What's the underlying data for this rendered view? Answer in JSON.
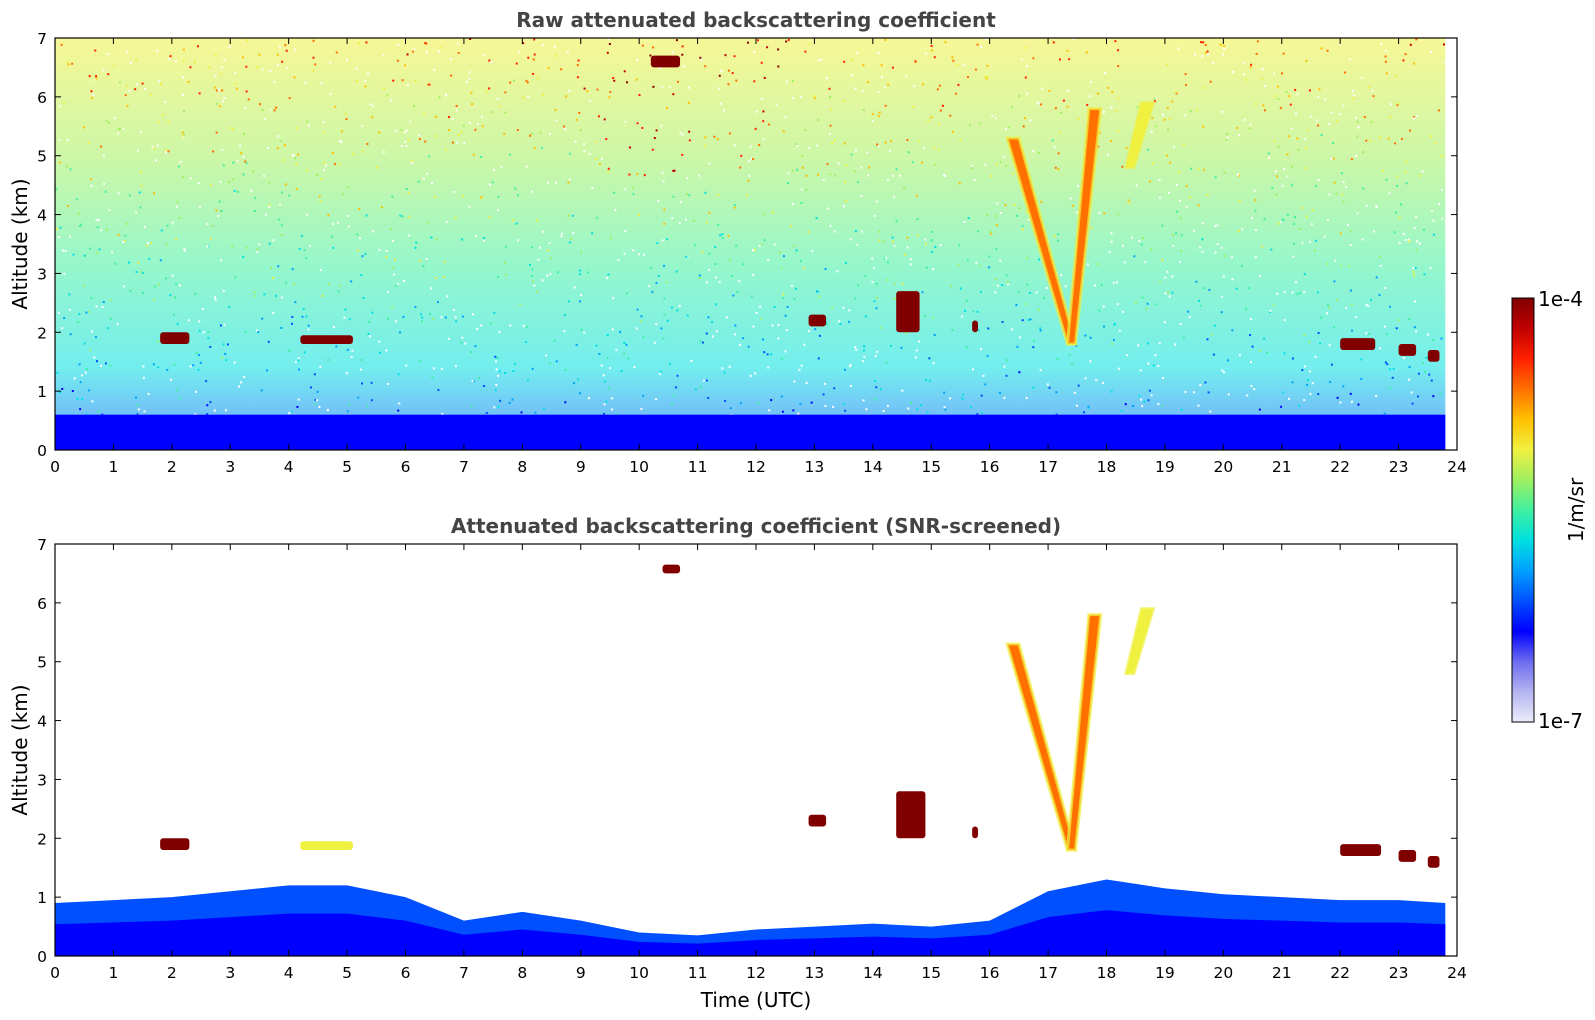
{
  "chart_data": [
    {
      "type": "heatmap",
      "title": "Raw attenuated backscattering coefficient",
      "xlabel": "",
      "ylabel": "Altitude (km)",
      "xlim": [
        0,
        24
      ],
      "ylim": [
        0,
        7
      ],
      "xticks": [
        "0",
        "1",
        "2",
        "3",
        "4",
        "5",
        "6",
        "7",
        "8",
        "9",
        "10",
        "11",
        "12",
        "13",
        "14",
        "15",
        "16",
        "17",
        "18",
        "19",
        "20",
        "21",
        "22",
        "23",
        "24"
      ],
      "yticks": [
        "0",
        "1",
        "2",
        "3",
        "4",
        "5",
        "6",
        "7"
      ],
      "data_end_time": 23.8,
      "features": [
        {
          "kind": "boundary-layer",
          "x": [
            0,
            23.8
          ],
          "top_km": 0.6,
          "level": "low"
        },
        {
          "kind": "noise-background",
          "x": [
            0,
            23.8
          ],
          "y": [
            0.6,
            7
          ],
          "level": "medium-high"
        },
        {
          "kind": "cloud",
          "x": [
            1.8,
            2.3
          ],
          "y": [
            1.8,
            2.0
          ],
          "level": "saturated"
        },
        {
          "kind": "cloud",
          "x": [
            4.2,
            5.1
          ],
          "y": [
            1.8,
            1.95
          ],
          "level": "saturated"
        },
        {
          "kind": "cloud",
          "x": [
            10.2,
            10.7
          ],
          "y": [
            6.5,
            6.7
          ],
          "level": "saturated"
        },
        {
          "kind": "cloud",
          "x": [
            12.9,
            13.2
          ],
          "y": [
            2.1,
            2.3
          ],
          "level": "saturated"
        },
        {
          "kind": "cloud",
          "x": [
            14.4,
            14.8
          ],
          "y": [
            2.0,
            2.7
          ],
          "level": "saturated"
        },
        {
          "kind": "cloud",
          "x": [
            15.7,
            15.8
          ],
          "y": [
            2.0,
            2.2
          ],
          "level": "saturated"
        },
        {
          "kind": "virga",
          "x": [
            16.4,
            17.4
          ],
          "y": [
            1.8,
            5.3
          ],
          "level": "high"
        },
        {
          "kind": "virga",
          "x": [
            17.4,
            17.8
          ],
          "y": [
            1.8,
            5.8
          ],
          "level": "high"
        },
        {
          "kind": "virga",
          "x": [
            18.4,
            18.7
          ],
          "y": [
            4.8,
            5.9
          ],
          "level": "medium"
        },
        {
          "kind": "cloud",
          "x": [
            22.0,
            22.6
          ],
          "y": [
            1.7,
            1.9
          ],
          "level": "saturated"
        },
        {
          "kind": "cloud",
          "x": [
            23.0,
            23.3
          ],
          "y": [
            1.6,
            1.8
          ],
          "level": "saturated"
        },
        {
          "kind": "cloud",
          "x": [
            23.5,
            23.7
          ],
          "y": [
            1.5,
            1.7
          ],
          "level": "saturated"
        }
      ]
    },
    {
      "type": "heatmap",
      "title": "Attenuated backscattering coefficient (SNR-screened)",
      "xlabel": "Time (UTC)",
      "ylabel": "Altitude (km)",
      "xlim": [
        0,
        24
      ],
      "ylim": [
        0,
        7
      ],
      "xticks": [
        "0",
        "1",
        "2",
        "3",
        "4",
        "5",
        "6",
        "7",
        "8",
        "9",
        "10",
        "11",
        "12",
        "13",
        "14",
        "15",
        "16",
        "17",
        "18",
        "19",
        "20",
        "21",
        "22",
        "23",
        "24"
      ],
      "yticks": [
        "0",
        "1",
        "2",
        "3",
        "4",
        "5",
        "6",
        "7"
      ],
      "data_end_time": 23.8,
      "boundary_layer_top_km": [
        [
          0,
          0.9
        ],
        [
          1,
          0.95
        ],
        [
          2,
          1.0
        ],
        [
          3,
          1.1
        ],
        [
          4,
          1.2
        ],
        [
          5,
          1.2
        ],
        [
          6,
          1.0
        ],
        [
          7,
          0.6
        ],
        [
          8,
          0.75
        ],
        [
          9,
          0.6
        ],
        [
          10,
          0.4
        ],
        [
          11,
          0.35
        ],
        [
          12,
          0.45
        ],
        [
          13,
          0.5
        ],
        [
          14,
          0.55
        ],
        [
          15,
          0.5
        ],
        [
          16,
          0.6
        ],
        [
          17,
          1.1
        ],
        [
          18,
          1.3
        ],
        [
          19,
          1.15
        ],
        [
          20,
          1.05
        ],
        [
          21,
          1.0
        ],
        [
          22,
          0.95
        ],
        [
          23,
          0.95
        ],
        [
          23.8,
          0.9
        ]
      ],
      "features": [
        {
          "kind": "cloud",
          "x": [
            1.8,
            2.3
          ],
          "y": [
            1.8,
            2.0
          ],
          "level": "saturated"
        },
        {
          "kind": "cloud",
          "x": [
            4.2,
            5.1
          ],
          "y": [
            1.8,
            1.95
          ],
          "level": "medium"
        },
        {
          "kind": "cloud",
          "x": [
            10.4,
            10.7
          ],
          "y": [
            6.5,
            6.65
          ],
          "level": "saturated"
        },
        {
          "kind": "cloud",
          "x": [
            12.9,
            13.2
          ],
          "y": [
            2.2,
            2.4
          ],
          "level": "saturated"
        },
        {
          "kind": "cloud",
          "x": [
            14.4,
            14.9
          ],
          "y": [
            2.0,
            2.8
          ],
          "level": "saturated"
        },
        {
          "kind": "cloud",
          "x": [
            15.7,
            15.8
          ],
          "y": [
            2.0,
            2.2
          ],
          "level": "saturated"
        },
        {
          "kind": "virga",
          "x": [
            16.4,
            17.4
          ],
          "y": [
            1.8,
            5.3
          ],
          "level": "high"
        },
        {
          "kind": "virga",
          "x": [
            17.4,
            17.8
          ],
          "y": [
            1.8,
            5.8
          ],
          "level": "high"
        },
        {
          "kind": "virga",
          "x": [
            18.4,
            18.7
          ],
          "y": [
            4.8,
            5.9
          ],
          "level": "medium"
        },
        {
          "kind": "cloud",
          "x": [
            22.0,
            22.7
          ],
          "y": [
            1.7,
            1.9
          ],
          "level": "saturated"
        },
        {
          "kind": "cloud",
          "x": [
            23.0,
            23.3
          ],
          "y": [
            1.6,
            1.8
          ],
          "level": "saturated"
        },
        {
          "kind": "cloud",
          "x": [
            23.5,
            23.7
          ],
          "y": [
            1.5,
            1.7
          ],
          "level": "saturated"
        }
      ]
    }
  ],
  "colorbar": {
    "label": "1/m/sr",
    "min_label": "1e-7",
    "max_label": "1e-4",
    "scale": "log",
    "colors": [
      "#ececfa",
      "#b4b4f0",
      "#6b6bf0",
      "#0000ff",
      "#0050ff",
      "#00a0ff",
      "#00e0e0",
      "#40f0a0",
      "#a0f060",
      "#f0f040",
      "#ffc000",
      "#ff7000",
      "#ff2000",
      "#c00000",
      "#800000"
    ]
  }
}
